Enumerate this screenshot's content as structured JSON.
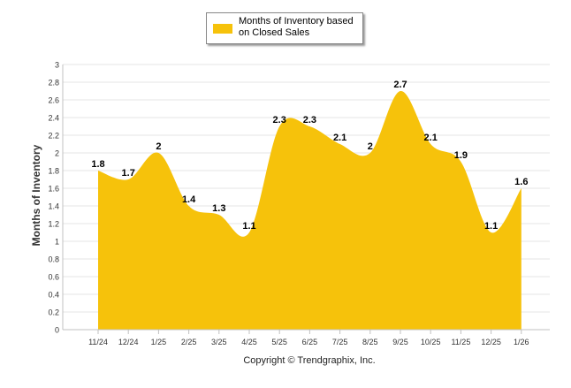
{
  "colors": {
    "area": "#f6c20b",
    "grid": "#e6e6e6",
    "axis": "#c0c0c0"
  },
  "chart_data": {
    "type": "area",
    "title": "",
    "series": [
      {
        "name": "Months of Inventory based on Closed Sales",
        "values": [
          1.8,
          1.7,
          2,
          1.4,
          1.3,
          1.1,
          2.3,
          2.3,
          2.1,
          2,
          2.7,
          2.1,
          1.9,
          1.1,
          1.6
        ]
      }
    ],
    "categories": [
      "11/24",
      "12/24",
      "1/25",
      "2/25",
      "3/25",
      "4/25",
      "5/25",
      "6/25",
      "7/25",
      "8/25",
      "9/25",
      "10/25",
      "11/25",
      "12/25",
      "1/26"
    ],
    "data_labels": [
      "1.8",
      "1.7",
      "2",
      "1.4",
      "1.3",
      "1.1",
      "2.3",
      "2.3",
      "2.1",
      "2",
      "2.7",
      "2.1",
      "1.9",
      "1.1",
      "1.6"
    ],
    "xlabel": "",
    "ylabel": "Months of Inventory",
    "ylim": [
      0,
      3
    ],
    "yticks": [
      0,
      0.2,
      0.4,
      0.6,
      0.8,
      1,
      1.2,
      1.4,
      1.6,
      1.8,
      2,
      2.2,
      2.4,
      2.6,
      2.8,
      3
    ],
    "ytick_labels": [
      "0",
      "0.2",
      "0.4",
      "0.6",
      "0.8",
      "1",
      "1.2",
      "1.4",
      "1.6",
      "1.8",
      "2",
      "2.2",
      "2.4",
      "2.6",
      "2.8",
      "3"
    ],
    "grid": true,
    "legend": "top-center"
  },
  "legend": {
    "label": "Months of Inventory based on Closed Sales"
  },
  "footer": {
    "copyright": "Copyright © Trendgraphix, Inc."
  }
}
